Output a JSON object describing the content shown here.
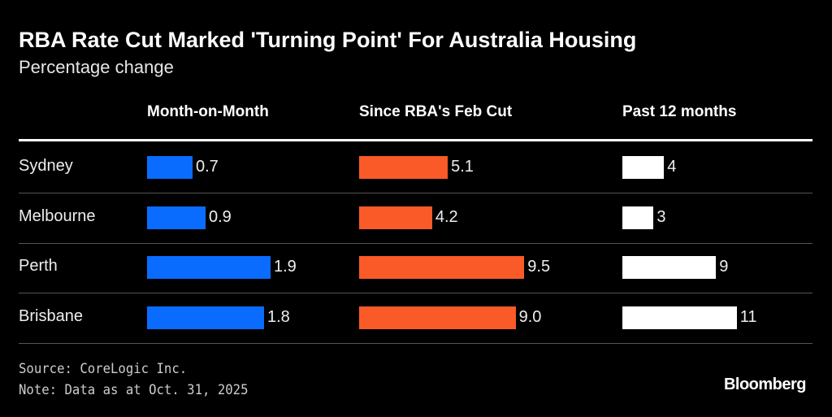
{
  "chart_data": {
    "type": "bar",
    "title": "RBA Rate Cut Marked 'Turning Point' For Australia Housing",
    "subtitle": "Percentage change",
    "categories": [
      "Sydney",
      "Melbourne",
      "Perth",
      "Brisbane"
    ],
    "series": [
      {
        "name": "Month-on-Month",
        "values": [
          0.7,
          0.9,
          1.9,
          1.8
        ],
        "labels": [
          "0.7",
          "0.9",
          "1.9",
          "1.8"
        ],
        "color": "#0a6cff"
      },
      {
        "name": "Since RBA's Feb Cut",
        "values": [
          5.1,
          4.2,
          9.5,
          9.0
        ],
        "labels": [
          "5.1",
          "4.2",
          "9.5",
          "9.0"
        ],
        "color": "#fa5a28"
      },
      {
        "name": "Past 12 months",
        "values": [
          4,
          3,
          9,
          11
        ],
        "labels": [
          "4",
          "3",
          "9",
          "11"
        ],
        "color": "#ffffff"
      }
    ],
    "grid": false
  },
  "footer": {
    "source": "Source: CoreLogic Inc.",
    "note": "Note: Data as at Oct. 31, 2025",
    "logo": "Bloomberg"
  }
}
